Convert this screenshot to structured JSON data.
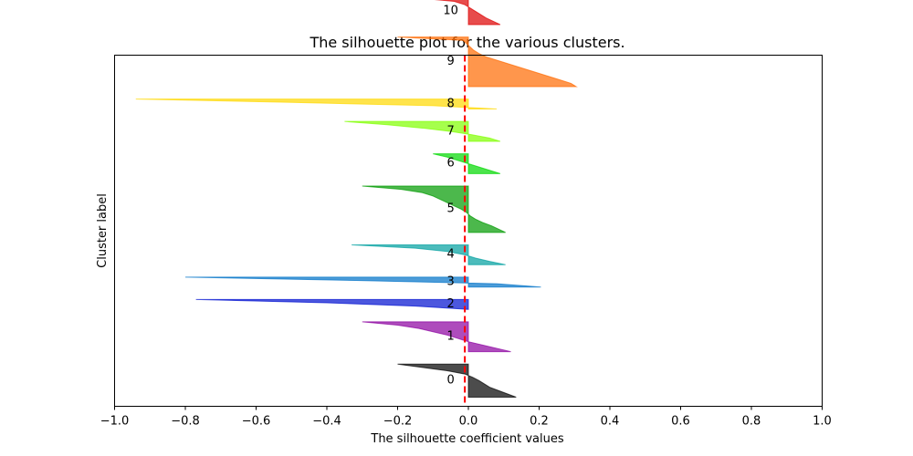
{
  "chart_data": {
    "type": "area",
    "title": "The silhouette plot for the various clusters.",
    "xlabel": "The silhouette coefficient values",
    "ylabel": "Cluster label",
    "xlim": [
      -1.0,
      1.0
    ],
    "x_ticks": [
      "−1.0",
      "−0.8",
      "−0.6",
      "−0.4",
      "−0.2",
      "0.0",
      "0.2",
      "0.4",
      "0.6",
      "0.8",
      "1.0"
    ],
    "x_tick_values": [
      -1.0,
      -0.8,
      -0.6,
      -0.4,
      -0.2,
      0.0,
      0.2,
      0.4,
      0.6,
      0.8,
      1.0
    ],
    "grid": false,
    "average_silhouette_score": -0.01,
    "average_line_color": "#ff0000",
    "series": [
      {
        "name": "0",
        "color": "#000000",
        "values": [
          0.135,
          0.11,
          0.085,
          0.06,
          0.045,
          0.03,
          0.012,
          -0.01,
          -0.06,
          -0.13,
          -0.2
        ]
      },
      {
        "name": "1",
        "color": "#8c00a0",
        "values": [
          0.12,
          0.08,
          0.04,
          0.0,
          -0.03,
          -0.06,
          -0.1,
          -0.14,
          -0.2,
          -0.3
        ]
      },
      {
        "name": "2",
        "color": "#0010d0",
        "values": [
          0.0,
          -0.15,
          -0.4,
          -0.77
        ]
      },
      {
        "name": "3",
        "color": "#0072c8",
        "values": [
          0.205,
          0.08,
          -0.32,
          -0.8
        ]
      },
      {
        "name": "4",
        "color": "#00a0a0",
        "values": [
          0.105,
          0.06,
          0.02,
          -0.01,
          -0.06,
          -0.15,
          -0.33
        ]
      },
      {
        "name": "5",
        "color": "#009a00",
        "values": [
          0.105,
          0.085,
          0.065,
          0.04,
          0.02,
          0.005,
          -0.005,
          -0.02,
          -0.04,
          -0.06,
          -0.08,
          -0.1,
          -0.13,
          -0.19,
          -0.3
        ]
      },
      {
        "name": "6",
        "color": "#00d800",
        "values": [
          0.09,
          0.06,
          0.03,
          0.0,
          -0.03,
          -0.06,
          -0.1
        ]
      },
      {
        "name": "7",
        "color": "#80ff00",
        "values": [
          0.09,
          0.06,
          0.01,
          -0.05,
          -0.13,
          -0.23,
          -0.35
        ]
      },
      {
        "name": "8",
        "color": "#ffd800",
        "values": [
          0.08,
          -0.1,
          -0.5,
          -0.94
        ]
      },
      {
        "name": "9",
        "color": "#ff6a00",
        "values": [
          0.305,
          0.29,
          0.26,
          0.23,
          0.2,
          0.17,
          0.14,
          0.11,
          0.08,
          0.05,
          0.03,
          0.015,
          0.005,
          -0.005,
          -0.015,
          -0.2
        ]
      },
      {
        "name": "10",
        "color": "#dd0000",
        "values": [
          0.09,
          0.07,
          0.05,
          0.035,
          0.02,
          0.005,
          -0.01,
          -0.04,
          -0.14
        ]
      }
    ]
  }
}
